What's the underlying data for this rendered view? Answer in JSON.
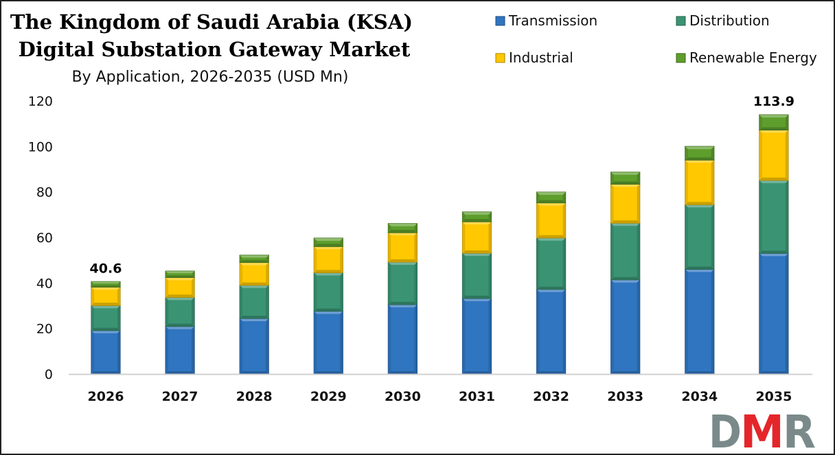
{
  "chart_data": {
    "type": "bar",
    "stacked": true,
    "title": "The Kingdom of Saudi Arabia (KSA) Digital Substation Gateway Market",
    "title_lines": [
      "The Kingdom of Saudi Arabia (KSA)",
      "Digital Substation Gateway Market"
    ],
    "subtitle": "By Application, 2026-2035 (USD Mn)",
    "categories": [
      "2026",
      "2027",
      "2028",
      "2029",
      "2030",
      "2031",
      "2032",
      "2033",
      "2034",
      "2035"
    ],
    "series": [
      {
        "name": "Transmission",
        "color": "#2f75c0",
        "values": [
          19.1,
          20.9,
          24.4,
          27.6,
          30.5,
          33.2,
          37.2,
          41.4,
          46.0,
          53.0
        ]
      },
      {
        "name": "Distribution",
        "color": "#3a9474",
        "values": [
          11.0,
          12.8,
          14.6,
          16.9,
          18.7,
          19.9,
          22.6,
          24.9,
          28.4,
          32.1
        ]
      },
      {
        "name": "Industrial",
        "color": "#ffc800",
        "values": [
          8.1,
          8.7,
          10.0,
          11.5,
          12.9,
          13.8,
          15.4,
          17.1,
          19.6,
          22.1
        ]
      },
      {
        "name": "Renewable Energy",
        "color": "#5e9e2c",
        "values": [
          2.4,
          2.8,
          3.2,
          3.7,
          4.0,
          4.3,
          4.7,
          5.3,
          6.0,
          6.7
        ]
      }
    ],
    "data_labels": [
      {
        "category": "2026",
        "text": "40.6"
      },
      {
        "category": "2035",
        "text": "113.9"
      }
    ],
    "ylim": [
      0,
      120
    ],
    "yticks": [
      "0",
      "20",
      "40",
      "60",
      "80",
      "100",
      "120"
    ],
    "grid": false,
    "legend_placement": "top-right"
  },
  "logo": {
    "text": "DMR",
    "colors": [
      "#7a8a8a",
      "#e4262b"
    ]
  }
}
